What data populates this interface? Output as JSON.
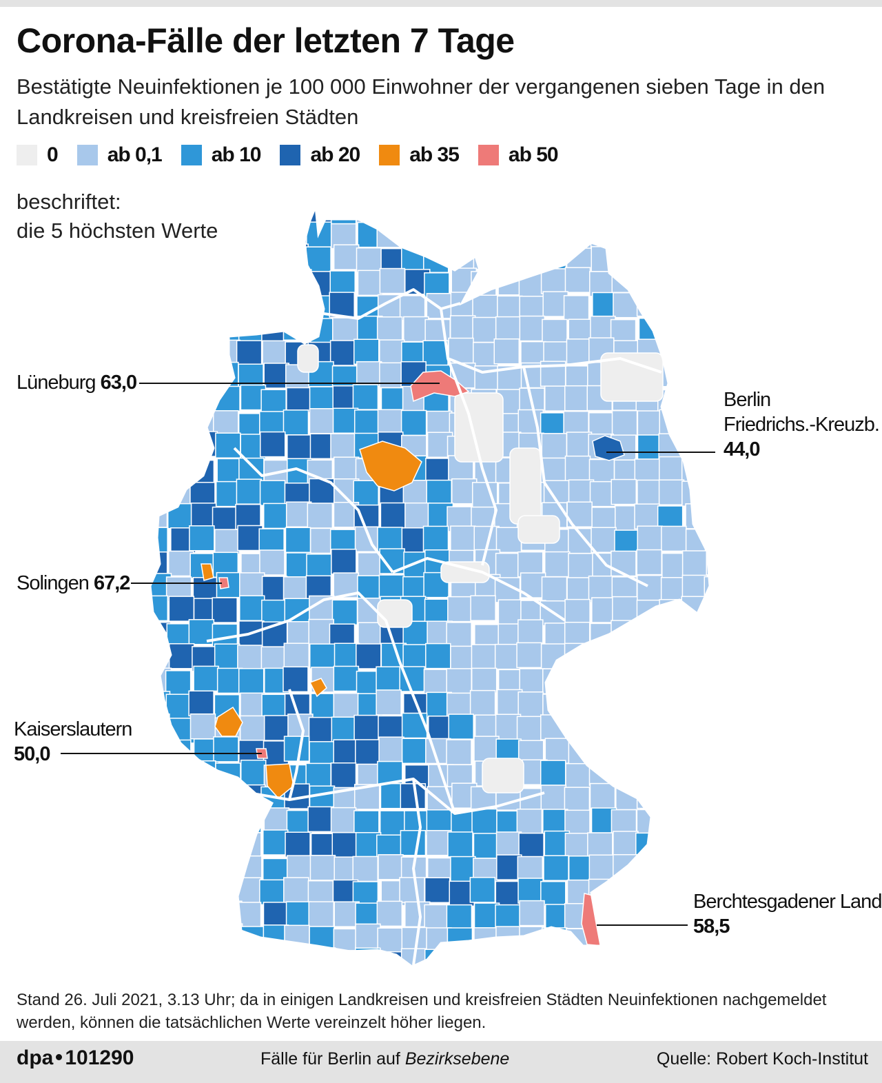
{
  "header": {
    "title": "Corona-Fälle der letzten 7 Tage",
    "subtitle": "Bestätigte Neuinfektionen je 100 000 Einwohner der vergangenen sieben Tage in den Landkreisen und kreisfreien Städten"
  },
  "legend": [
    {
      "label": "0",
      "color": "#eeeeee"
    },
    {
      "label": "ab 0,1",
      "color": "#a8c8eb"
    },
    {
      "label": "ab 10",
      "color": "#2f97d8"
    },
    {
      "label": "ab 20",
      "color": "#1f64b0"
    },
    {
      "label": "ab 35",
      "color": "#f08a10"
    },
    {
      "label": "ab 50",
      "color": "#ee7a78"
    }
  ],
  "note": {
    "line1": "beschriftet:",
    "line2": "die 5 höchsten Werte"
  },
  "labels": {
    "lueneburg": {
      "name": "Lüneburg",
      "value": "63,0"
    },
    "berlin": {
      "name1": "Berlin",
      "name2": "Friedrichs.-Kreuzb.",
      "value": "44,0"
    },
    "solingen": {
      "name": "Solingen",
      "value": "67,2"
    },
    "kaiserslautern": {
      "name": "Kaiserslautern",
      "value": "50,0"
    },
    "berchtesgaden": {
      "name": "Berchtesgadener Land",
      "value": "58,5"
    }
  },
  "footnote": "Stand 26. Juli 2021, 3.13 Uhr; da in einigen Landkreisen und kreisfreien Städten Neuinfektionen nachgemeldet werden, können die tatsächlichen Werte vereinzelt höher liegen.",
  "footer": {
    "agency": "dpa",
    "code": "101290",
    "middle_plain": "Fälle für Berlin auf ",
    "middle_italic": "Bezirksebene",
    "source": "Quelle: Robert Koch-Institut"
  },
  "colors": {
    "zero": "#eeeeee",
    "light": "#a8c8eb",
    "medium": "#2f97d8",
    "dark": "#1f64b0",
    "orange": "#f08a10",
    "red": "#ee7a78"
  }
}
